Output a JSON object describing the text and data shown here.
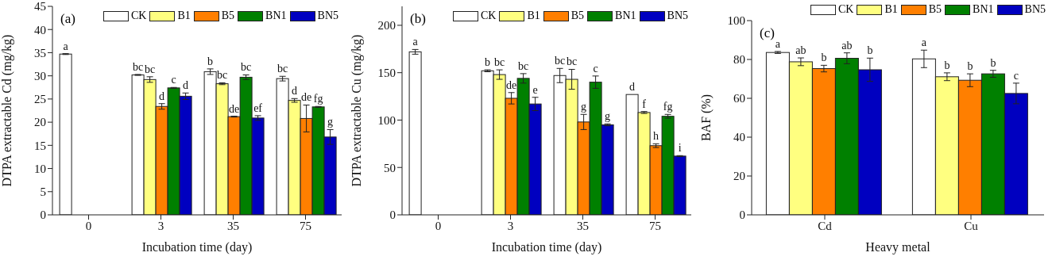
{
  "chart_data": [
    {
      "type": "bar",
      "title": "(a)",
      "xlabel": "Incubation time (day)",
      "ylabel": "DTPA extractable Cd  (mg/kg)",
      "categories": [
        "0",
        "3",
        "35",
        "75"
      ],
      "ylim": [
        0,
        45
      ],
      "yticks": [
        0,
        5,
        10,
        15,
        20,
        25,
        30,
        35,
        40,
        45
      ],
      "legend": "top right",
      "series": [
        {
          "name": "CK",
          "color": "#ffffff",
          "values": [
            34.7,
            30.2,
            30.9,
            29.4
          ],
          "errors": [
            0.1,
            0.1,
            0.6,
            0.5
          ]
        },
        {
          "name": "B1",
          "color": "#ffff80",
          "values": [
            null,
            29.2,
            28.3,
            24.7
          ],
          "errors": [
            null,
            0.6,
            0.2,
            0.4
          ]
        },
        {
          "name": "B5",
          "color": "#ff7f00",
          "values": [
            null,
            23.4,
            21.2,
            20.8
          ],
          "errors": [
            null,
            0.6,
            0.1,
            2.9
          ]
        },
        {
          "name": "BN1",
          "color": "#008000",
          "values": [
            null,
            27.4,
            29.7,
            23.3
          ],
          "errors": [
            null,
            0.1,
            0.5,
            0.1
          ]
        },
        {
          "name": "BN5",
          "color": "#0000c0",
          "values": [
            null,
            25.6,
            20.9,
            16.8
          ],
          "errors": [
            null,
            0.7,
            0.5,
            1.6
          ]
        }
      ],
      "annotations": [
        "a",
        "bc",
        "bc",
        "d",
        "c",
        "d",
        "b",
        "bc",
        "de",
        "bc",
        "ef",
        "bc",
        "d",
        "de",
        "fg",
        "g"
      ]
    },
    {
      "type": "bar",
      "title": "(b)",
      "xlabel": "Incubation time (day)",
      "ylabel": "DTPA extractable Cu (mg/kg)",
      "categories": [
        "0",
        "3",
        "35",
        "75"
      ],
      "ylim": [
        0,
        220
      ],
      "yticks": [
        0,
        50,
        100,
        150,
        200
      ],
      "legend": "top right",
      "series": [
        {
          "name": "CK",
          "color": "#ffffff",
          "values": [
            172,
            152,
            147,
            127
          ],
          "errors": [
            2.5,
            1,
            7.5,
            null
          ]
        },
        {
          "name": "B1",
          "color": "#ffff80",
          "values": [
            null,
            148,
            143,
            108
          ],
          "errors": [
            null,
            5,
            10.5,
            1
          ]
        },
        {
          "name": "B5",
          "color": "#ff7f00",
          "values": [
            null,
            123,
            98,
            73
          ],
          "errors": [
            null,
            6,
            8,
            2
          ]
        },
        {
          "name": "BN1",
          "color": "#008000",
          "values": [
            null,
            144,
            140,
            104
          ],
          "errors": [
            null,
            5,
            6.5,
            2
          ]
        },
        {
          "name": "BN5",
          "color": "#0000c0",
          "values": [
            null,
            117,
            95,
            62
          ],
          "errors": [
            null,
            7,
            1,
            0.5
          ]
        }
      ],
      "annotations": [
        "a",
        "b",
        "bc",
        "de",
        "bc",
        "e",
        "bc",
        "bc",
        "g",
        "c",
        "g",
        "d",
        "f",
        "h",
        "fg",
        "i"
      ]
    },
    {
      "type": "bar",
      "title": "(c)",
      "xlabel": "Heavy metal",
      "ylabel": "BAF (%)",
      "categories": [
        "Cd",
        "Cu"
      ],
      "ylim": [
        0,
        100
      ],
      "yticks": [
        0,
        20,
        40,
        60,
        80,
        100
      ],
      "legend": "top",
      "series": [
        {
          "name": "CK",
          "color": "#ffffff",
          "values": [
            83.6,
            80.3
          ],
          "errors": [
            0.5,
            4.5
          ]
        },
        {
          "name": "B1",
          "color": "#ffff80",
          "values": [
            78.8,
            71.1
          ],
          "errors": [
            2,
            2
          ]
        },
        {
          "name": "B5",
          "color": "#ff7f00",
          "values": [
            75.3,
            69.3
          ],
          "errors": [
            1.7,
            3.3
          ]
        },
        {
          "name": "BN1",
          "color": "#008000",
          "values": [
            80.6,
            72.6
          ],
          "errors": [
            2.8,
            1.8
          ]
        },
        {
          "name": "BN5",
          "color": "#0000c0",
          "values": [
            74.7,
            62.5
          ],
          "errors": [
            6,
            5.3
          ]
        }
      ],
      "annotations": [
        "a",
        "ab",
        "b",
        "ab",
        "b",
        "a",
        "b",
        "b",
        "b",
        "c"
      ]
    }
  ]
}
